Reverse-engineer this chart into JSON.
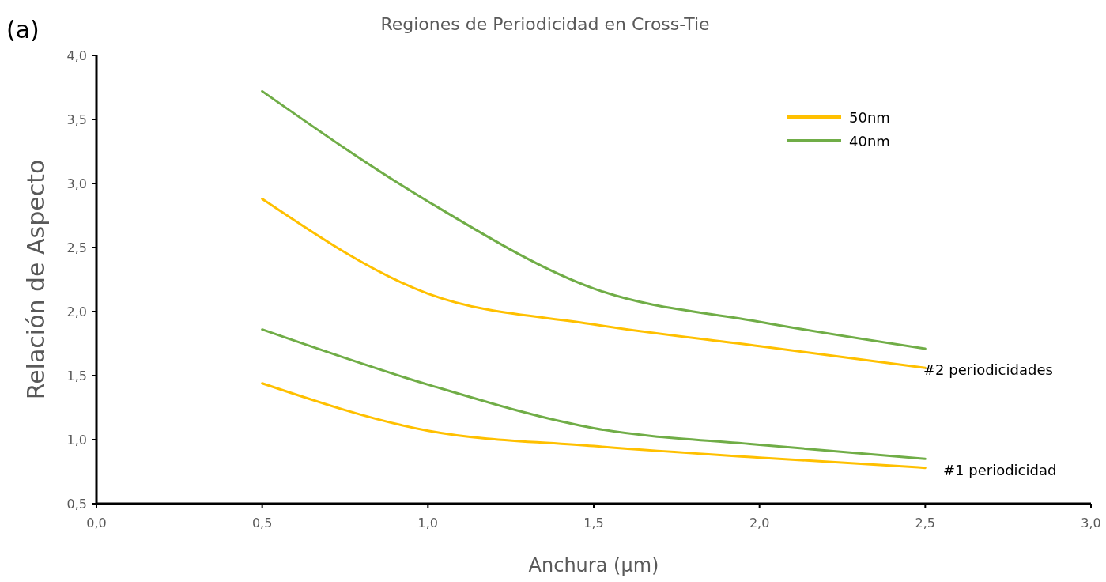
{
  "chart_data": {
    "type": "line",
    "title": "Regiones de Periodicidad en Cross-Tie",
    "xlabel": "Anchura (µm)",
    "ylabel": "Relación de Aspecto",
    "x": [
      0.5,
      1.0,
      1.5,
      2.0,
      2.5
    ],
    "series": [
      {
        "name": "50nm",
        "color": "#ffc000",
        "values": [
          2.88,
          2.14,
          1.9,
          1.73,
          1.56
        ]
      },
      {
        "name": "40nm",
        "color": "#70ad47",
        "values": [
          3.72,
          2.86,
          2.18,
          1.92,
          1.71
        ]
      },
      {
        "color": "#70ad47",
        "values": [
          1.86,
          1.43,
          1.09,
          0.96,
          0.85
        ]
      },
      {
        "color": "#ffc000",
        "values": [
          1.44,
          1.07,
          0.95,
          0.86,
          0.78
        ]
      }
    ],
    "xlim": [
      0,
      3
    ],
    "xticks": [
      {
        "value": 0,
        "label": "0,0"
      },
      {
        "value": 0.5,
        "label": "0,5"
      },
      {
        "value": 1,
        "label": "1,0"
      },
      {
        "value": 1.5,
        "label": "1,5"
      },
      {
        "value": 2,
        "label": "2,0"
      },
      {
        "value": 2.5,
        "label": "2,5"
      },
      {
        "value": 3,
        "label": "3,0"
      }
    ],
    "ylim": [
      0.5,
      4
    ],
    "yticks": [
      {
        "value": 0.5,
        "label": "0,5"
      },
      {
        "value": 1,
        "label": "1,0"
      },
      {
        "value": 1.5,
        "label": "1,5"
      },
      {
        "value": 2,
        "label": "2,0"
      },
      {
        "value": 2.5,
        "label": "2,5"
      },
      {
        "value": 3,
        "label": "3,0"
      },
      {
        "value": 3.5,
        "label": "3,5"
      },
      {
        "value": 4,
        "label": "4,0"
      }
    ],
    "annotations": [
      "(a)",
      "#2 periodicidades",
      "#1 periodicidad"
    ],
    "legend": "top right",
    "grid": false,
    "marker": "none",
    "line_style": "solid"
  }
}
